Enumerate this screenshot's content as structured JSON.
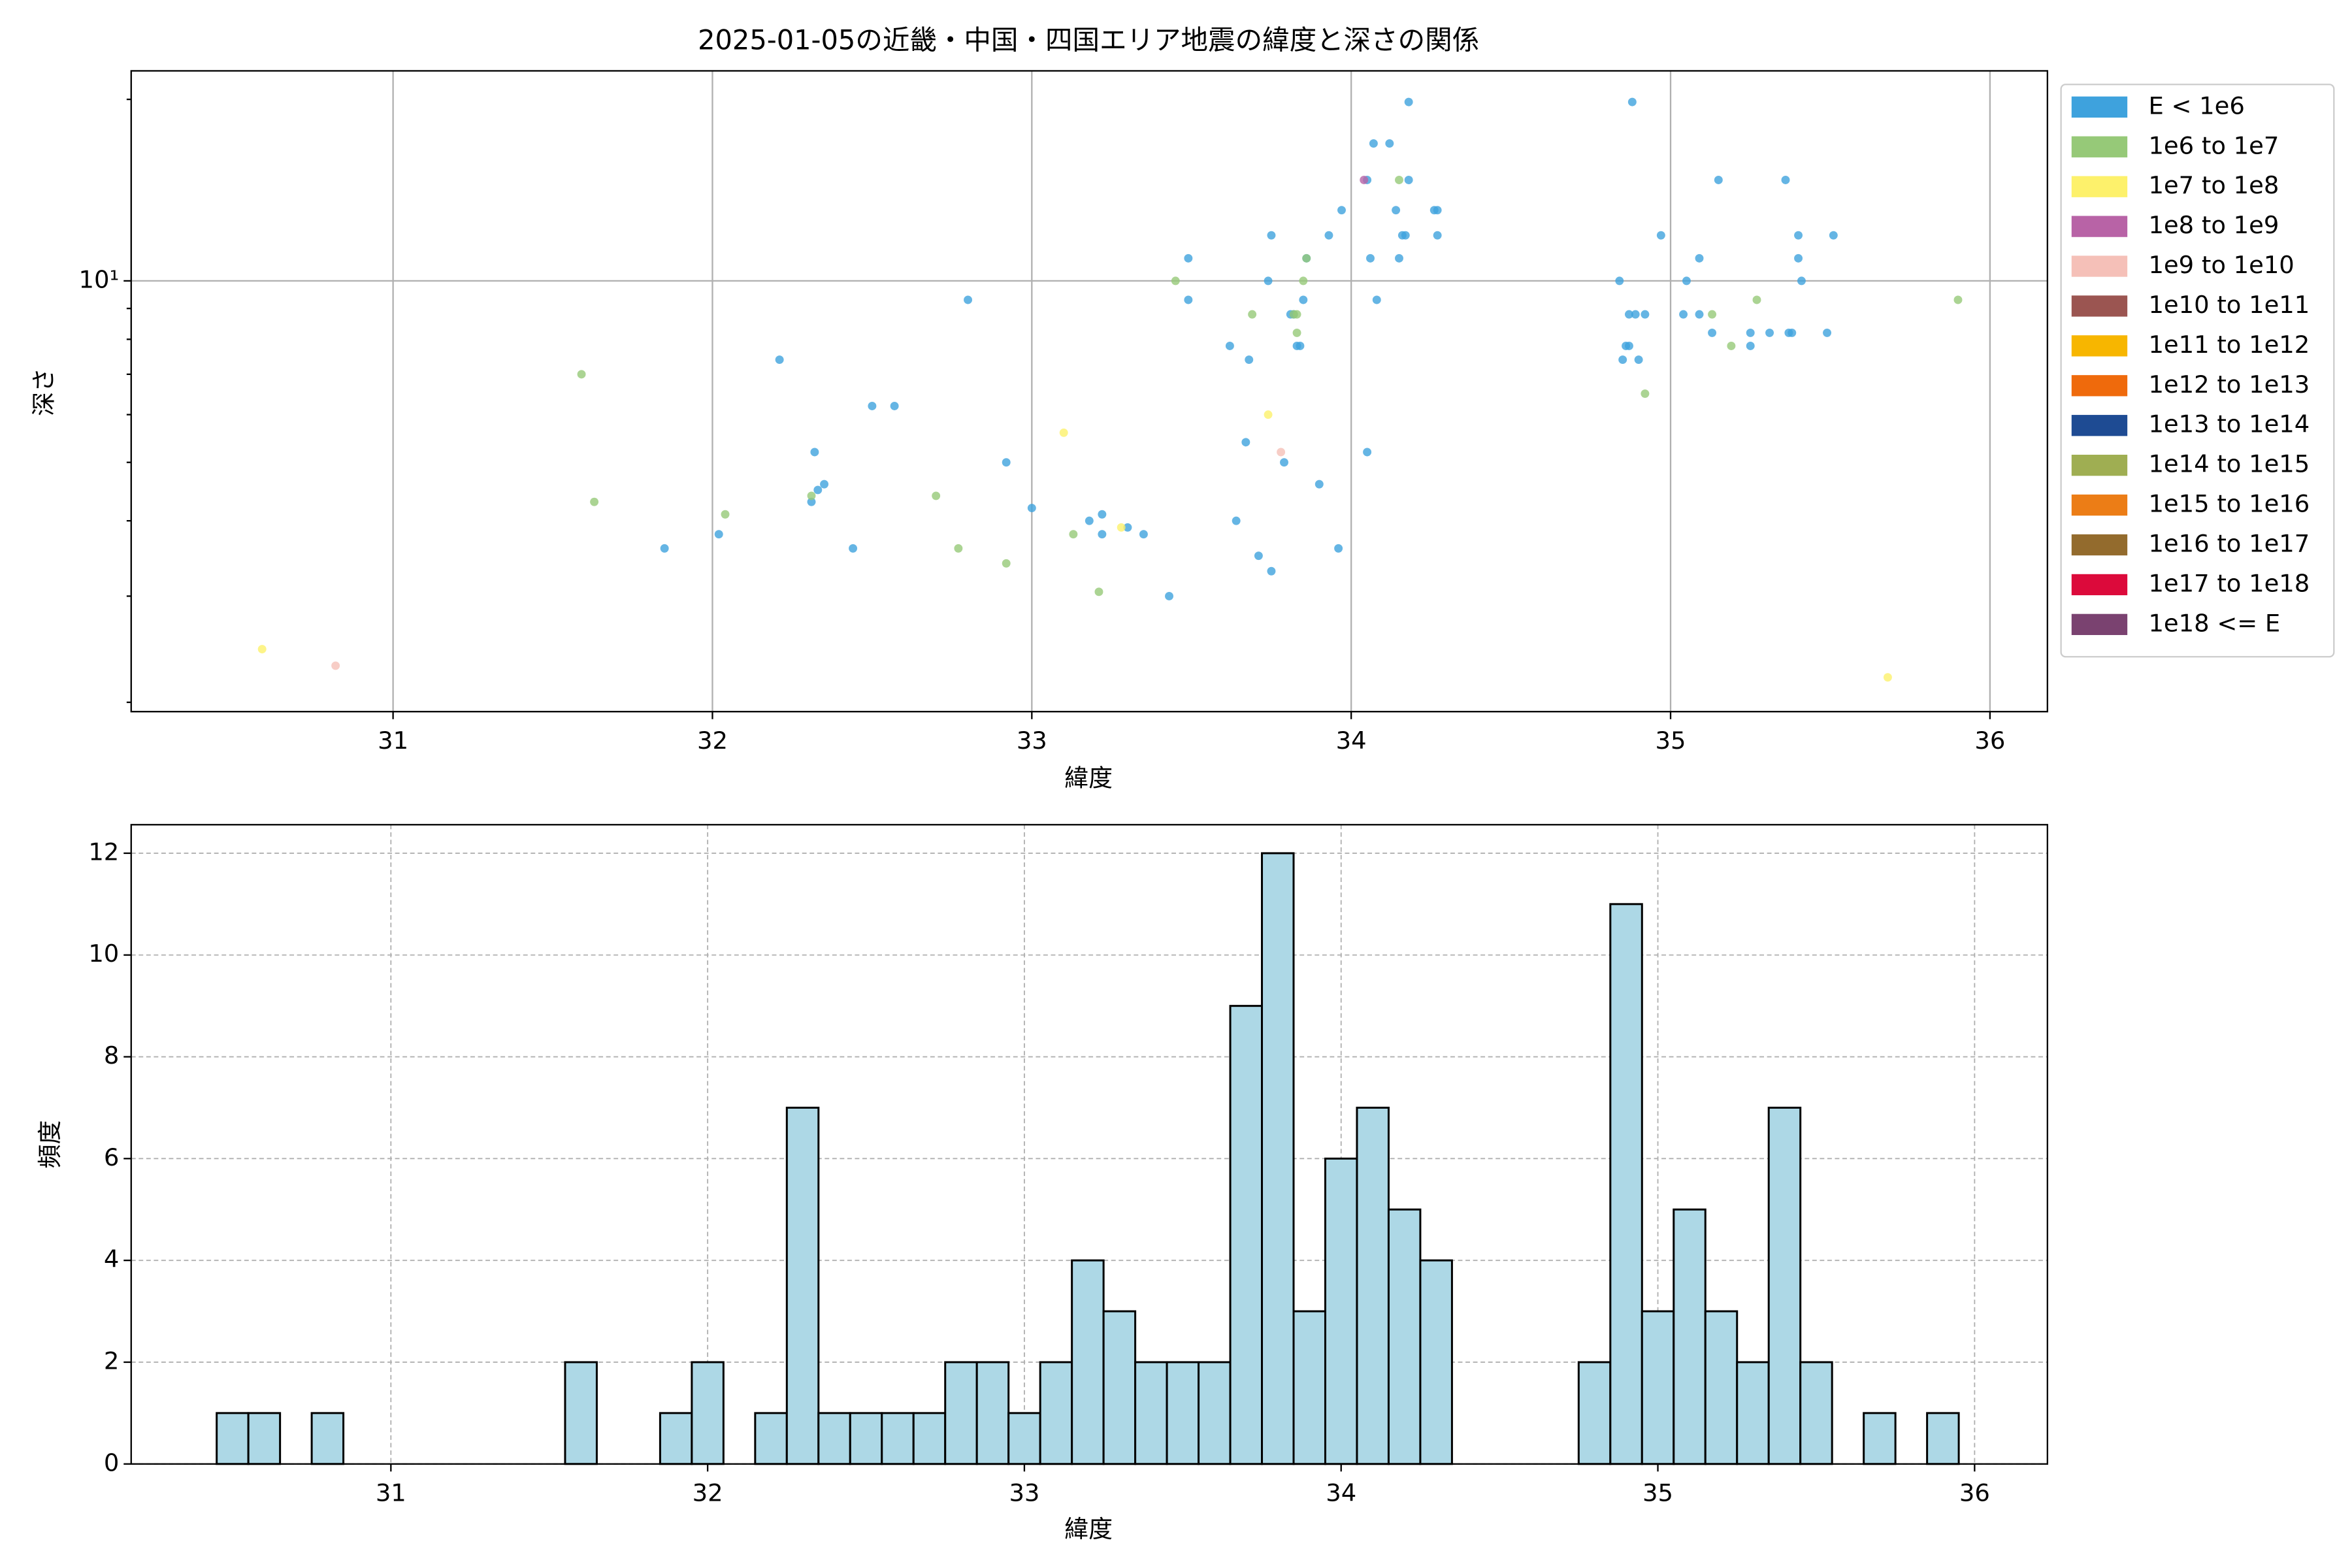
{
  "chart_data": [
    {
      "type": "scatter",
      "title": "2025-01-05の近畿・中国・四国エリア地震の緯度と深さの関係",
      "xlabel": "緯度",
      "ylabel": "深さ",
      "xlim": [
        30.18,
        36.18
      ],
      "xticks": [
        31,
        32,
        33,
        34,
        35,
        36
      ],
      "ylim": [
        1.93,
        22.3
      ],
      "yscale": "log",
      "yticks": [
        {
          "value": 10,
          "label": "10¹"
        }
      ],
      "yminorticks": [
        2,
        3,
        4,
        5,
        6,
        7,
        8,
        9,
        20
      ],
      "grid": true,
      "legend": "outside-upper-right",
      "series": [
        {
          "name": "E < 1e6",
          "color": "#3ea2dd",
          "x": [
            31.85,
            32.02,
            32.21,
            32.32,
            32.31,
            32.33,
            32.35,
            32.44,
            32.5,
            32.57,
            32.8,
            32.92,
            33.0,
            33.18,
            33.22,
            33.22,
            33.3,
            33.35,
            33.43,
            33.49,
            33.49,
            33.62,
            33.64,
            33.67,
            33.68,
            33.71,
            33.74,
            33.75,
            33.75,
            33.79,
            33.81,
            33.82,
            33.83,
            33.84,
            33.85,
            33.86,
            33.9,
            33.93,
            33.96,
            33.97,
            34.05,
            34.05,
            34.06,
            34.07,
            34.08,
            34.12,
            34.14,
            34.15,
            34.16,
            34.17,
            34.18,
            34.18,
            34.26,
            34.27,
            34.27,
            34.84,
            34.85,
            34.86,
            34.87,
            34.87,
            34.88,
            34.89,
            34.9,
            34.92,
            34.97,
            35.04,
            35.05,
            35.09,
            35.09,
            35.13,
            35.15,
            35.25,
            35.25,
            35.31,
            35.36,
            35.37,
            35.38,
            35.4,
            35.4,
            35.41,
            35.49,
            35.51
          ],
          "values": [
            3.6,
            3.8,
            7.4,
            5.2,
            4.3,
            4.5,
            4.6,
            3.6,
            6.2,
            6.2,
            9.3,
            5.0,
            4.2,
            4.0,
            4.1,
            3.8,
            3.9,
            3.8,
            3.0,
            10.9,
            9.3,
            7.8,
            4.0,
            5.4,
            7.4,
            3.5,
            10,
            11.9,
            3.3,
            5.0,
            8.8,
            8.8,
            7.8,
            7.8,
            9.3,
            10.9,
            4.6,
            11.9,
            3.6,
            13.1,
            5.2,
            14.7,
            10.9,
            16.9,
            9.3,
            16.9,
            13.1,
            10.9,
            11.9,
            11.9,
            14.7,
            19.8,
            13.1,
            11.9,
            13.1,
            10,
            7.4,
            7.8,
            7.8,
            8.8,
            19.8,
            8.8,
            7.4,
            8.8,
            11.9,
            8.8,
            10,
            10.9,
            8.8,
            8.2,
            14.7,
            7.8,
            8.2,
            8.2,
            14.7,
            8.2,
            8.2,
            11.9,
            10.9,
            10,
            8.2,
            11.9
          ]
        },
        {
          "name": "1e6 to 1e7",
          "color": "#96c978",
          "x": [
            31.59,
            31.63,
            32.04,
            32.31,
            32.7,
            32.77,
            32.92,
            33.13,
            33.21,
            33.45,
            33.69,
            33.82,
            33.83,
            33.83,
            33.85,
            33.86,
            34.15,
            34.92,
            35.13,
            35.19,
            35.27,
            35.9
          ],
          "values": [
            7.0,
            4.3,
            4.1,
            4.4,
            4.4,
            3.6,
            3.4,
            3.8,
            3.05,
            10,
            8.8,
            8.8,
            8.2,
            8.8,
            10,
            10.9,
            14.7,
            6.5,
            8.8,
            7.8,
            9.3,
            9.3
          ]
        },
        {
          "name": "1e7 to 1e8",
          "color": "#fdf16b",
          "x": [
            30.59,
            33.1,
            33.28,
            33.74,
            35.68
          ],
          "values": [
            2.45,
            5.6,
            3.9,
            6.0,
            2.2
          ]
        },
        {
          "name": "1e8 to 1e9",
          "color": "#b863a6",
          "x": [
            34.04
          ],
          "values": [
            14.7
          ]
        },
        {
          "name": "1e9 to 1e10",
          "color": "#f5c0b8",
          "x": [
            30.82,
            33.78
          ],
          "values": [
            2.3,
            5.2
          ]
        },
        {
          "name": "1e10 to 1e11",
          "color": "#9b5551",
          "x": [],
          "values": []
        },
        {
          "name": "1e11 to 1e12",
          "color": "#f7b600",
          "x": [],
          "values": []
        },
        {
          "name": "1e12 to 1e13",
          "color": "#ef6a0c",
          "x": [],
          "values": []
        },
        {
          "name": "1e13 to 1e14",
          "color": "#1e4b93",
          "x": [],
          "values": []
        },
        {
          "name": "1e14 to 1e15",
          "color": "#9fae52",
          "x": [],
          "values": []
        },
        {
          "name": "1e15 to 1e16",
          "color": "#ec7d16",
          "x": [],
          "values": []
        },
        {
          "name": "1e16 to 1e17",
          "color": "#936b2d",
          "x": [],
          "values": []
        },
        {
          "name": "1e17 to 1e18",
          "color": "#dc0a3b",
          "x": [],
          "values": []
        },
        {
          "name": "1e18 <= E",
          "color": "#7a4270",
          "x": [],
          "values": []
        }
      ]
    },
    {
      "type": "histogram",
      "xlabel": "緯度",
      "ylabel": "頻度",
      "color": "#add8e6",
      "edgecolor": "#000000",
      "xlim": [
        30.18,
        36.23
      ],
      "xticks": [
        31,
        32,
        33,
        34,
        35,
        36
      ],
      "ylim": [
        0,
        12.56
      ],
      "yticks": [
        0,
        2,
        4,
        6,
        8,
        10,
        12
      ],
      "grid": true,
      "bins": [
        30.45,
        30.55,
        30.65,
        30.75,
        30.85,
        30.95,
        31.05,
        31.15,
        31.25,
        31.35,
        31.45,
        31.55,
        31.65,
        31.75,
        31.85,
        31.95,
        32.05,
        32.15,
        32.25,
        32.35,
        32.45,
        32.55,
        32.65,
        32.75,
        32.85,
        32.95,
        33.05,
        33.15,
        33.25,
        33.35,
        33.45,
        33.55,
        33.65,
        33.75,
        33.85,
        33.95,
        34.05,
        34.15,
        34.25,
        34.35,
        34.45,
        34.55,
        34.65,
        34.75,
        34.85,
        34.95,
        35.05,
        35.15,
        35.25,
        35.35,
        35.45,
        35.55,
        35.65,
        35.75,
        35.85,
        35.95
      ],
      "counts": [
        1,
        1,
        0,
        1,
        0,
        0,
        0,
        0,
        0,
        0,
        0,
        2,
        0,
        0,
        1,
        2,
        0,
        1,
        7,
        1,
        1,
        1,
        1,
        2,
        2,
        1,
        2,
        4,
        3,
        2,
        2,
        2,
        9,
        12,
        3,
        6,
        7,
        5,
        4,
        0,
        0,
        0,
        0,
        2,
        11,
        3,
        5,
        3,
        2,
        7,
        2,
        0,
        1,
        0,
        1
      ]
    }
  ]
}
